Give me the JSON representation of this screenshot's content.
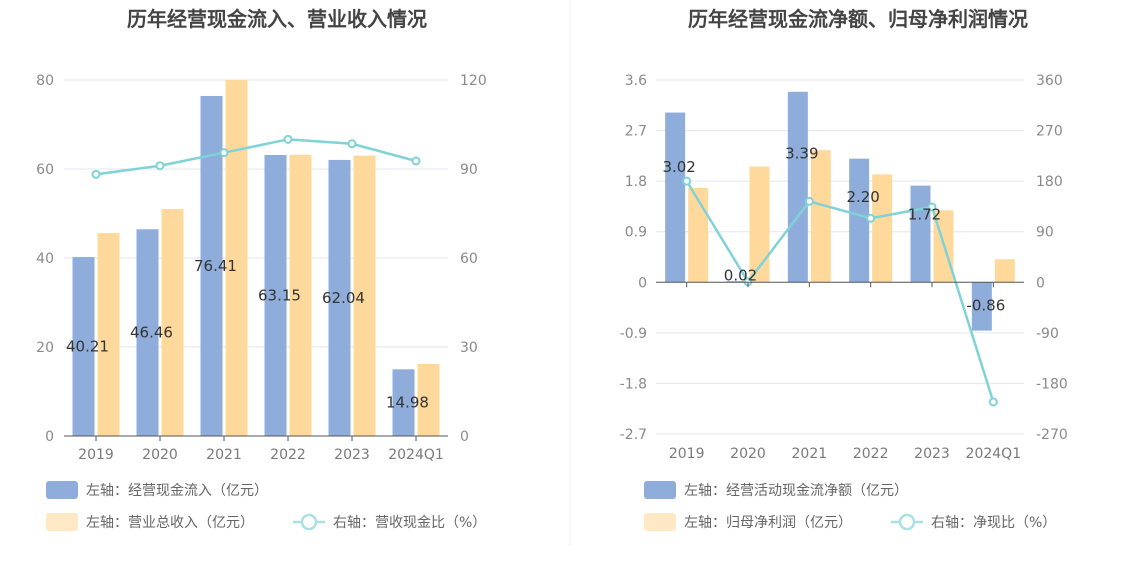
{
  "chart_data": [
    {
      "type": "bar",
      "title": "历年经营现金流入、营业收入情况",
      "categories": [
        "2019",
        "2020",
        "2021",
        "2022",
        "2023",
        "2024Q1"
      ],
      "yTicksLeft": [
        "0",
        "20",
        "40",
        "60",
        "80"
      ],
      "yTicksRight": [
        "0",
        "30",
        "60",
        "90",
        "120"
      ],
      "ylim_left": [
        0,
        80
      ],
      "ylim_right": [
        0,
        120
      ],
      "grid": true,
      "legend_position": "bottom-left",
      "series": [
        {
          "name": "左轴：经营现金流入（亿元）",
          "type": "bar",
          "axis": "left",
          "color": "#8eadda",
          "values": [
            40.21,
            46.46,
            76.41,
            63.15,
            62.04,
            14.98
          ],
          "labels": [
            "40.21",
            "46.46",
            "76.41",
            "63.15",
            "62.04",
            "14.98"
          ]
        },
        {
          "name": "左轴：营业总收入（亿元）",
          "type": "bar",
          "axis": "left",
          "color": "#ffd99b",
          "values": [
            45.6,
            51.0,
            80.0,
            63.2,
            63.0,
            16.2
          ]
        },
        {
          "name": "右轴：营收现金比（%）",
          "type": "line",
          "axis": "right",
          "color": "#7fd3d8",
          "values": [
            88.2,
            91.1,
            95.5,
            100.0,
            98.5,
            92.7
          ]
        }
      ]
    },
    {
      "type": "bar",
      "title": "历年经营现金流净额、归母净利润情况",
      "categories": [
        "2019",
        "2020",
        "2021",
        "2022",
        "2023",
        "2024Q1"
      ],
      "yTicksLeft": [
        "-2.7",
        "-1.8",
        "-0.9",
        "0",
        "0.9",
        "1.8",
        "2.7",
        "3.6"
      ],
      "yTicksRight": [
        "-270",
        "-180",
        "-90",
        "0",
        "90",
        "180",
        "270",
        "360"
      ],
      "ylim_left": [
        -2.7,
        3.6
      ],
      "ylim_right": [
        -270,
        360
      ],
      "grid": true,
      "legend_position": "bottom-left",
      "series": [
        {
          "name": "左轴：经营活动现金流净额（亿元）",
          "type": "bar",
          "axis": "left",
          "color": "#8eadda",
          "values": [
            3.02,
            0.02,
            3.39,
            2.2,
            1.72,
            -0.86
          ],
          "labels": [
            "3.02",
            "0.02",
            "3.39",
            "2.20",
            "1.72",
            "-0.86"
          ]
        },
        {
          "name": "左轴：归母净利润（亿元）",
          "type": "bar",
          "axis": "left",
          "color": "#ffd99b",
          "values": [
            1.68,
            2.06,
            2.35,
            1.92,
            1.28,
            0.41
          ]
        },
        {
          "name": "右轴：净现比（%）",
          "type": "line",
          "axis": "right",
          "color": "#7fd3d8",
          "values": [
            180,
            1,
            144,
            114,
            134,
            -213
          ]
        }
      ]
    }
  ]
}
